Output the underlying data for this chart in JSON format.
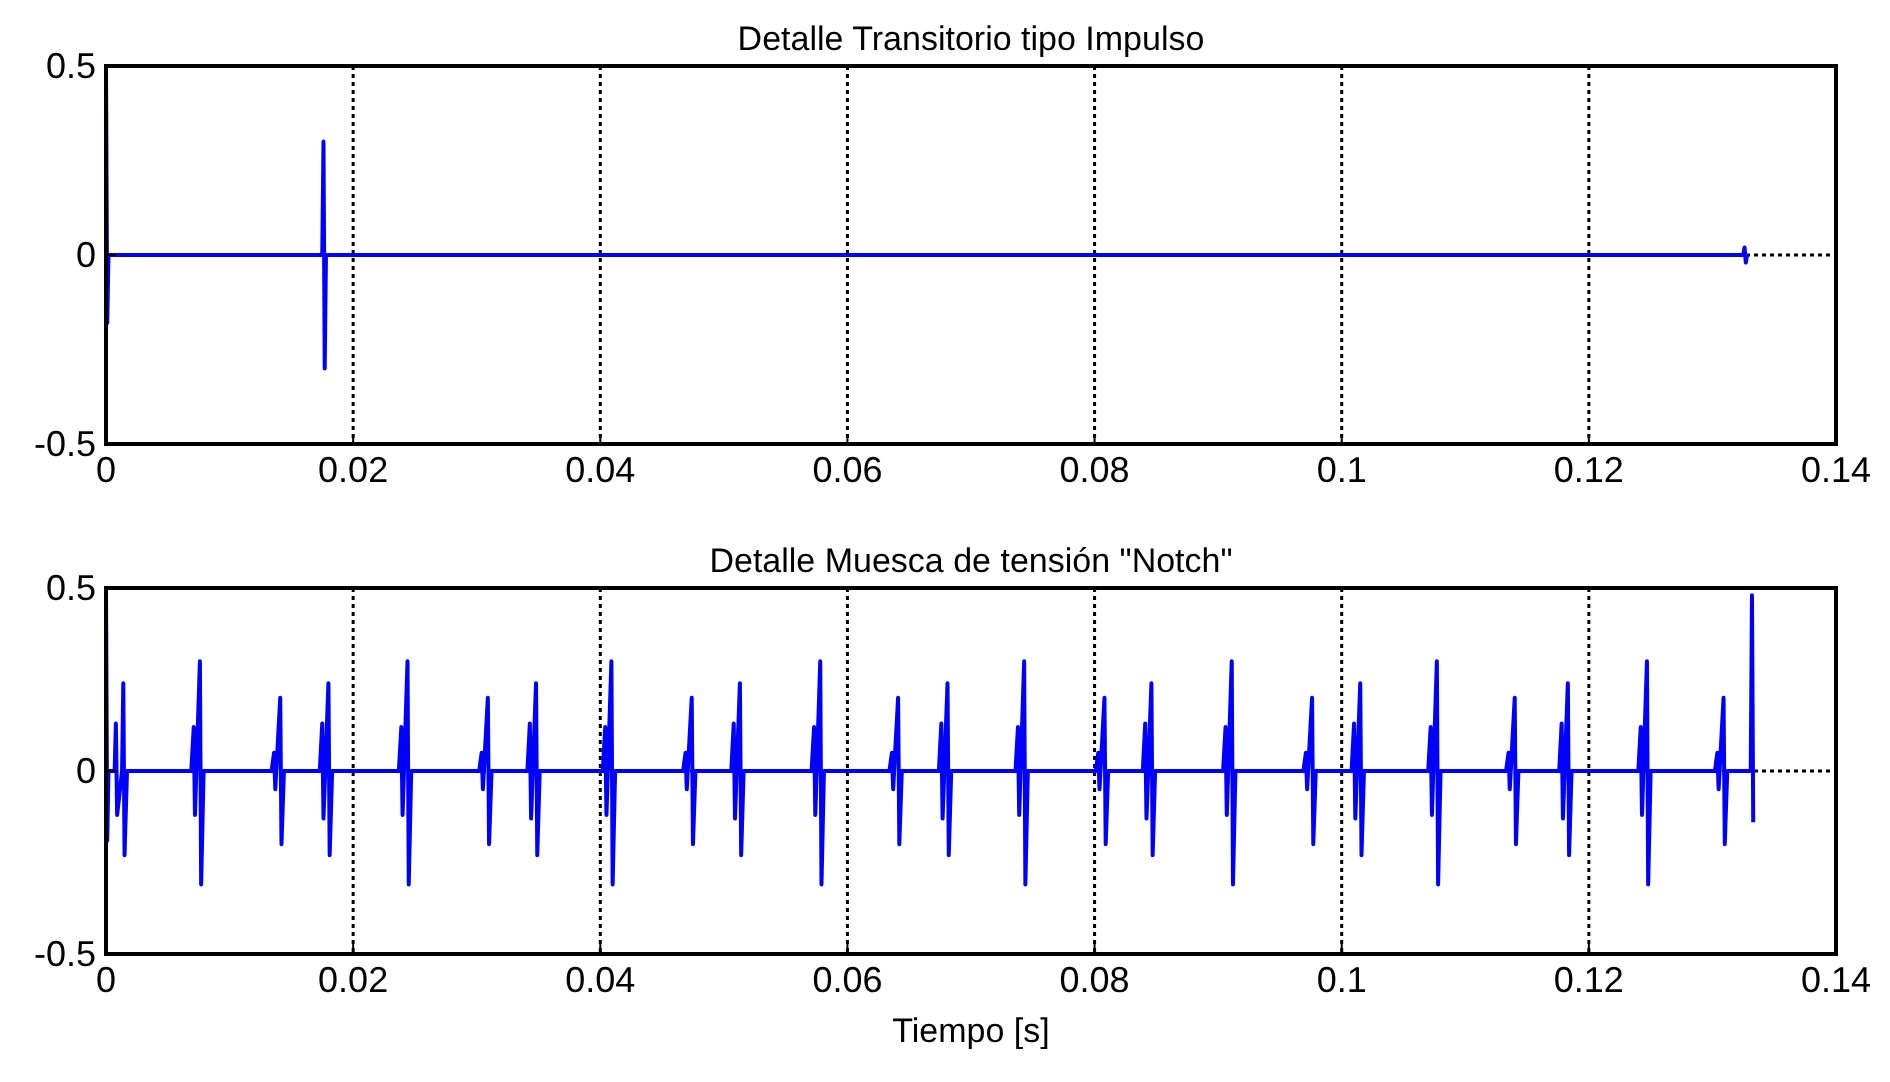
{
  "chart_data": [
    {
      "type": "line",
      "title": "Detalle Transitorio tipo Impulso",
      "xlim": [
        0,
        0.14
      ],
      "ylim": [
        -0.5,
        0.5
      ],
      "xticks": [
        0,
        0.02,
        0.04,
        0.06,
        0.08,
        0.1,
        0.12,
        0.14
      ],
      "yticks": [
        -0.5,
        0,
        0.5
      ],
      "grid": true,
      "series": [
        {
          "color": "#0000ff",
          "x": [
            0,
            0.0001,
            0.0002,
            0.0175,
            0.0176,
            0.0177,
            0.0178,
            0.1325,
            0.1326,
            0.1327,
            0.1328
          ],
          "values": [
            0.5,
            -0.18,
            0,
            0,
            0.3,
            -0.3,
            0,
            0,
            0.02,
            -0.02,
            0
          ]
        }
      ]
    },
    {
      "type": "line",
      "title": "Detalle Muesca de tensión \"Notch\"",
      "xlabel": "Tiempo [s]",
      "xlim": [
        0,
        0.14
      ],
      "ylim": [
        -0.5,
        0.5
      ],
      "xticks": [
        0,
        0.02,
        0.04,
        0.06,
        0.08,
        0.1,
        0.12,
        0.14
      ],
      "yticks": [
        -0.5,
        0,
        0.5
      ],
      "grid": true,
      "series": [
        {
          "color": "#0000ff",
          "x": [
            0,
            0.0001,
            0.0002,
            0.0007,
            0.0008,
            0.0009,
            0.0013,
            0.0014,
            0.0015,
            0.0017,
            0.0069,
            0.0071,
            0.0072,
            0.0076,
            0.0077,
            0.0079,
            0.0134,
            0.0136,
            0.0137,
            0.0141,
            0.0142,
            0.0144,
            0.0173,
            0.0175,
            0.0176,
            0.018,
            0.0181,
            0.0183,
            0.0237,
            0.0239,
            0.024,
            0.0244,
            0.0245,
            0.0247,
            0.0302,
            0.0304,
            0.0305,
            0.0309,
            0.031,
            0.0312,
            0.0341,
            0.0343,
            0.0344,
            0.0348,
            0.0349,
            0.0351,
            0.0402,
            0.0404,
            0.0405,
            0.0409,
            0.041,
            0.0412,
            0.0467,
            0.0469,
            0.047,
            0.0474,
            0.0475,
            0.0477,
            0.0506,
            0.0508,
            0.0509,
            0.0513,
            0.0514,
            0.0516,
            0.0571,
            0.0573,
            0.0574,
            0.0578,
            0.0579,
            0.0581,
            0.0634,
            0.0636,
            0.0637,
            0.0641,
            0.0642,
            0.0644,
            0.0674,
            0.0676,
            0.0677,
            0.0681,
            0.0682,
            0.0684,
            0.0736,
            0.0738,
            0.0739,
            0.0743,
            0.0744,
            0.0746,
            0.0801,
            0.0803,
            0.0804,
            0.0808,
            0.0809,
            0.0811,
            0.0839,
            0.0841,
            0.0842,
            0.0846,
            0.0847,
            0.0849,
            0.0904,
            0.0906,
            0.0907,
            0.0911,
            0.0912,
            0.0914,
            0.0969,
            0.0971,
            0.0972,
            0.0976,
            0.0977,
            0.0979,
            0.1008,
            0.101,
            0.1011,
            0.1015,
            0.1016,
            0.1018,
            0.107,
            0.1072,
            0.1073,
            0.1077,
            0.1078,
            0.108,
            0.1133,
            0.1135,
            0.1136,
            0.114,
            0.1141,
            0.1143,
            0.1176,
            0.1178,
            0.1179,
            0.1183,
            0.1184,
            0.1186,
            0.124,
            0.1242,
            0.1243,
            0.1247,
            0.1248,
            0.125,
            0.1302,
            0.1304,
            0.1305,
            0.1309,
            0.131,
            0.1312,
            0.1331,
            0.1332,
            0.1333
          ],
          "values": [
            0.5,
            -0.19,
            0,
            0,
            0.13,
            -0.12,
            0,
            0.24,
            -0.23,
            0,
            0,
            0.12,
            -0.12,
            0.3,
            -0.31,
            0,
            0,
            0.05,
            -0.05,
            0.2,
            -0.2,
            0,
            0,
            0.13,
            -0.13,
            0.24,
            -0.23,
            0,
            0,
            0.12,
            -0.12,
            0.3,
            -0.31,
            0,
            0,
            0.05,
            -0.05,
            0.2,
            -0.2,
            0,
            0,
            0.13,
            -0.13,
            0.24,
            -0.23,
            0,
            0,
            0.12,
            -0.12,
            0.3,
            -0.31,
            0,
            0,
            0.05,
            -0.05,
            0.2,
            -0.2,
            0,
            0,
            0.13,
            -0.13,
            0.24,
            -0.23,
            0,
            0,
            0.12,
            -0.12,
            0.3,
            -0.31,
            0,
            0,
            0.05,
            -0.05,
            0.2,
            -0.2,
            0,
            0,
            0.13,
            -0.13,
            0.24,
            -0.23,
            0,
            0,
            0.12,
            -0.12,
            0.3,
            -0.31,
            0,
            0,
            0.05,
            -0.05,
            0.2,
            -0.2,
            0,
            0,
            0.13,
            -0.13,
            0.24,
            -0.23,
            0,
            0,
            0.12,
            -0.12,
            0.3,
            -0.31,
            0,
            0,
            0.05,
            -0.05,
            0.2,
            -0.2,
            0,
            0,
            0.13,
            -0.13,
            0.24,
            -0.23,
            0,
            0,
            0.12,
            -0.12,
            0.3,
            -0.31,
            0,
            0,
            0.05,
            -0.05,
            0.2,
            -0.2,
            0,
            0,
            0.13,
            -0.13,
            0.24,
            -0.23,
            0,
            0,
            0.12,
            -0.12,
            0.3,
            -0.31,
            0,
            0,
            0.05,
            -0.05,
            0.2,
            -0.2,
            0,
            0,
            0.48,
            -0.14
          ]
        }
      ]
    }
  ]
}
